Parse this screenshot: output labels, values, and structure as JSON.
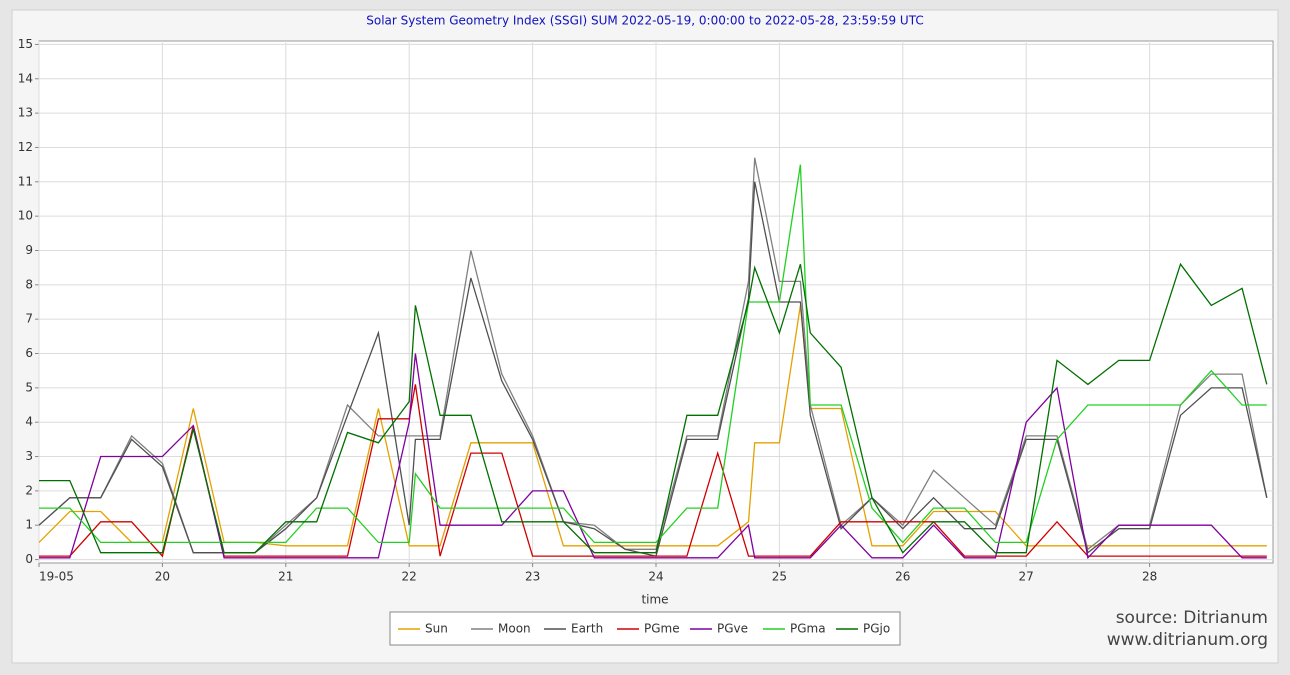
{
  "chart_data": {
    "type": "line",
    "title": "Solar System Geometry Index (SSGI) SUM 2022-05-19,  0:00:00 to 2022-05-28, 23:59:59 UTC",
    "x_label": "time",
    "annotations": [
      "source: Ditrianum",
      "www.ditrianum.org"
    ],
    "x": [
      19,
      19.25,
      19.5,
      19.75,
      20,
      20.25,
      20.5,
      20.75,
      21,
      21.25,
      21.5,
      21.75,
      22,
      22.05,
      22.25,
      22.5,
      22.75,
      23,
      23.25,
      23.5,
      23.75,
      24,
      24.25,
      24.5,
      24.75,
      24.8,
      25,
      25.17,
      25.25,
      25.5,
      25.75,
      26,
      26.25,
      26.5,
      26.75,
      27,
      27.25,
      27.5,
      27.75,
      28,
      28.25,
      28.5,
      28.75,
      28.95
    ],
    "xlim": [
      19,
      29
    ],
    "xticks": [
      {
        "value": 19,
        "label": "19-05"
      },
      20,
      21,
      22,
      23,
      24,
      25,
      26,
      27,
      28
    ],
    "ylim": [
      -0.1,
      15.1
    ],
    "yticks": [
      0,
      1,
      2,
      3,
      4,
      5,
      6,
      7,
      8,
      9,
      10,
      11,
      12,
      13,
      14,
      15
    ],
    "grid": true,
    "legend": "bottom",
    "series": [
      {
        "name": "Sun",
        "color": "#e5a100",
        "values": [
          0.5,
          1.4,
          1.4,
          0.5,
          0.5,
          4.4,
          0.5,
          0.5,
          0.4,
          0.4,
          0.4,
          4.4,
          0.4,
          0.4,
          0.4,
          3.4,
          3.4,
          3.4,
          0.4,
          0.4,
          0.4,
          0.4,
          0.4,
          0.4,
          1.1,
          3.4,
          3.4,
          7.4,
          4.4,
          4.4,
          0.4,
          0.4,
          1.4,
          1.4,
          1.4,
          0.4,
          0.4,
          0.4,
          0.4,
          0.4,
          0.4,
          0.4,
          0.4,
          0.4
        ]
      },
      {
        "name": "Moon",
        "color": "#808080",
        "values": [
          1.0,
          1.8,
          1.8,
          3.6,
          2.8,
          0.2,
          0.2,
          0.2,
          1.0,
          1.8,
          4.5,
          3.6,
          3.6,
          3.6,
          3.6,
          9.0,
          5.4,
          3.6,
          1.1,
          1.0,
          0.3,
          0.3,
          3.6,
          3.6,
          8.1,
          11.7,
          8.1,
          8.1,
          4.5,
          1.0,
          1.8,
          1.0,
          2.6,
          1.8,
          1.0,
          3.6,
          3.6,
          0.3,
          1.0,
          1.0,
          4.5,
          5.4,
          5.4,
          1.8
        ]
      },
      {
        "name": "Earth",
        "color": "#505050",
        "values": [
          1.0,
          1.8,
          1.8,
          3.5,
          2.7,
          0.2,
          0.2,
          0.2,
          0.9,
          1.8,
          4.2,
          6.6,
          1.0,
          3.5,
          3.5,
          8.2,
          5.2,
          3.5,
          1.1,
          0.9,
          0.3,
          0.1,
          3.5,
          3.5,
          7.6,
          11.0,
          7.5,
          7.5,
          4.2,
          0.9,
          1.8,
          0.9,
          1.8,
          0.9,
          0.9,
          3.5,
          3.5,
          0.2,
          0.9,
          0.9,
          4.2,
          5.0,
          5.0,
          1.8
        ]
      },
      {
        "name": "PGme",
        "color": "#d00000",
        "values": [
          0.1,
          0.1,
          1.1,
          1.1,
          0.1,
          3.9,
          0.1,
          0.1,
          0.1,
          0.1,
          0.1,
          4.1,
          4.1,
          5.1,
          0.1,
          3.1,
          3.1,
          0.1,
          0.1,
          0.1,
          0.1,
          0.1,
          0.1,
          3.1,
          0.1,
          0.1,
          0.1,
          0.1,
          0.1,
          1.1,
          1.1,
          1.1,
          1.1,
          0.1,
          0.1,
          0.1,
          1.1,
          0.1,
          0.1,
          0.1,
          0.1,
          0.1,
          0.1,
          0.1
        ]
      },
      {
        "name": "PGve",
        "color": "#8000a0",
        "values": [
          0.05,
          0.05,
          3.0,
          3.0,
          3.0,
          3.9,
          0.05,
          0.05,
          0.05,
          0.05,
          0.05,
          0.05,
          4.0,
          6.0,
          1.0,
          1.0,
          1.0,
          2.0,
          2.0,
          0.05,
          0.05,
          0.05,
          0.05,
          0.05,
          1.0,
          0.05,
          0.05,
          0.05,
          0.05,
          1.0,
          0.05,
          0.05,
          1.0,
          0.05,
          0.05,
          4.0,
          5.0,
          0.05,
          1.0,
          1.0,
          1.0,
          1.0,
          0.05,
          0.05
        ]
      },
      {
        "name": "PGma",
        "color": "#22d022",
        "values": [
          1.5,
          1.5,
          0.5,
          0.5,
          0.5,
          0.5,
          0.5,
          0.5,
          0.5,
          1.5,
          1.5,
          0.5,
          0.5,
          2.5,
          1.5,
          1.5,
          1.5,
          1.5,
          1.5,
          0.5,
          0.5,
          0.5,
          1.5,
          1.5,
          7.5,
          7.5,
          7.5,
          11.5,
          4.5,
          4.5,
          1.5,
          0.5,
          1.5,
          1.5,
          0.5,
          0.5,
          3.5,
          4.5,
          4.5,
          4.5,
          4.5,
          5.5,
          4.5,
          4.5
        ]
      },
      {
        "name": "PGjo",
        "color": "#007000",
        "values": [
          2.3,
          2.3,
          0.2,
          0.2,
          0.2,
          3.8,
          0.2,
          0.2,
          1.1,
          1.1,
          3.7,
          3.4,
          4.6,
          7.4,
          4.2,
          4.2,
          1.1,
          1.1,
          1.1,
          0.2,
          0.2,
          0.2,
          4.2,
          4.2,
          7.5,
          8.5,
          6.6,
          8.6,
          6.6,
          5.6,
          1.8,
          0.2,
          1.1,
          1.1,
          0.2,
          0.2,
          5.8,
          5.1,
          5.8,
          5.8,
          8.6,
          7.4,
          7.9,
          5.1
        ]
      }
    ]
  }
}
